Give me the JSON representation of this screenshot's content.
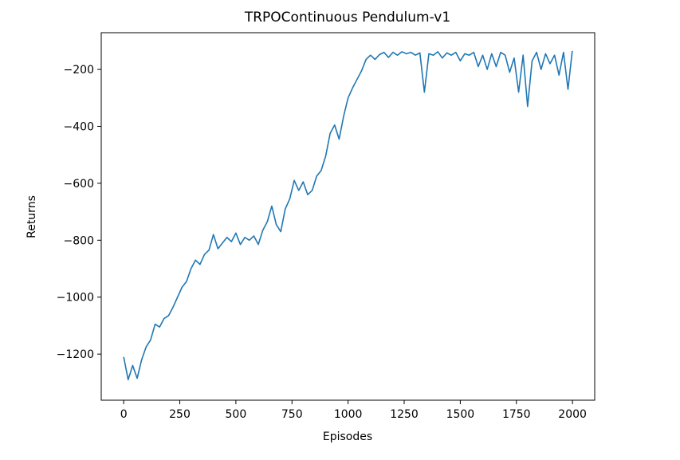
{
  "chart_data": {
    "type": "line",
    "title": "TRPOContinuous Pendulum-v1",
    "x_label": "Episodes",
    "y_label": "Returns",
    "x": [
      0,
      20,
      40,
      60,
      80,
      100,
      120,
      140,
      160,
      180,
      200,
      220,
      240,
      260,
      280,
      300,
      320,
      340,
      360,
      380,
      400,
      420,
      440,
      460,
      480,
      500,
      520,
      540,
      560,
      580,
      600,
      620,
      640,
      660,
      680,
      700,
      720,
      740,
      760,
      780,
      800,
      820,
      840,
      860,
      880,
      900,
      920,
      940,
      960,
      980,
      1000,
      1020,
      1040,
      1060,
      1080,
      1100,
      1120,
      1140,
      1160,
      1180,
      1200,
      1220,
      1240,
      1260,
      1280,
      1300,
      1320,
      1340,
      1360,
      1380,
      1400,
      1420,
      1440,
      1460,
      1480,
      1500,
      1520,
      1540,
      1560,
      1580,
      1600,
      1620,
      1640,
      1660,
      1680,
      1700,
      1720,
      1740,
      1760,
      1780,
      1800,
      1820,
      1840,
      1860,
      1880,
      1900,
      1920,
      1940,
      1960,
      1980,
      1999
    ],
    "series": [
      {
        "name": "Returns",
        "color": "#1f77b4",
        "values": [
          -1210,
          -1290,
          -1240,
          -1285,
          -1220,
          -1175,
          -1150,
          -1095,
          -1105,
          -1075,
          -1065,
          -1035,
          -1000,
          -965,
          -945,
          -900,
          -870,
          -885,
          -850,
          -835,
          -780,
          -830,
          -810,
          -790,
          -805,
          -775,
          -815,
          -790,
          -800,
          -785,
          -815,
          -765,
          -735,
          -680,
          -745,
          -770,
          -690,
          -655,
          -590,
          -625,
          -595,
          -640,
          -625,
          -575,
          -555,
          -505,
          -425,
          -395,
          -445,
          -365,
          -300,
          -265,
          -235,
          -205,
          -165,
          -150,
          -165,
          -148,
          -140,
          -158,
          -140,
          -150,
          -138,
          -145,
          -140,
          -150,
          -142,
          -280,
          -145,
          -150,
          -138,
          -160,
          -142,
          -150,
          -140,
          -170,
          -145,
          -150,
          -140,
          -190,
          -150,
          -200,
          -145,
          -190,
          -140,
          -150,
          -210,
          -160,
          -280,
          -150,
          -330,
          -170,
          -140,
          -200,
          -145,
          -180,
          -150,
          -220,
          -140,
          -270,
          -135
        ]
      }
    ],
    "xlim": [
      -100,
      2099
    ],
    "ylim": [
      -1362,
      -71
    ],
    "xticks": [
      0,
      250,
      500,
      750,
      1000,
      1250,
      1500,
      1750,
      2000
    ],
    "yticks": [
      {
        "value": -1200,
        "label": "−1200"
      },
      {
        "value": -1000,
        "label": "−1000"
      },
      {
        "value": -800,
        "label": "−800"
      },
      {
        "value": -600,
        "label": "−600"
      },
      {
        "value": -400,
        "label": "−400"
      },
      {
        "value": -200,
        "label": "−200"
      }
    ],
    "grid": false
  }
}
